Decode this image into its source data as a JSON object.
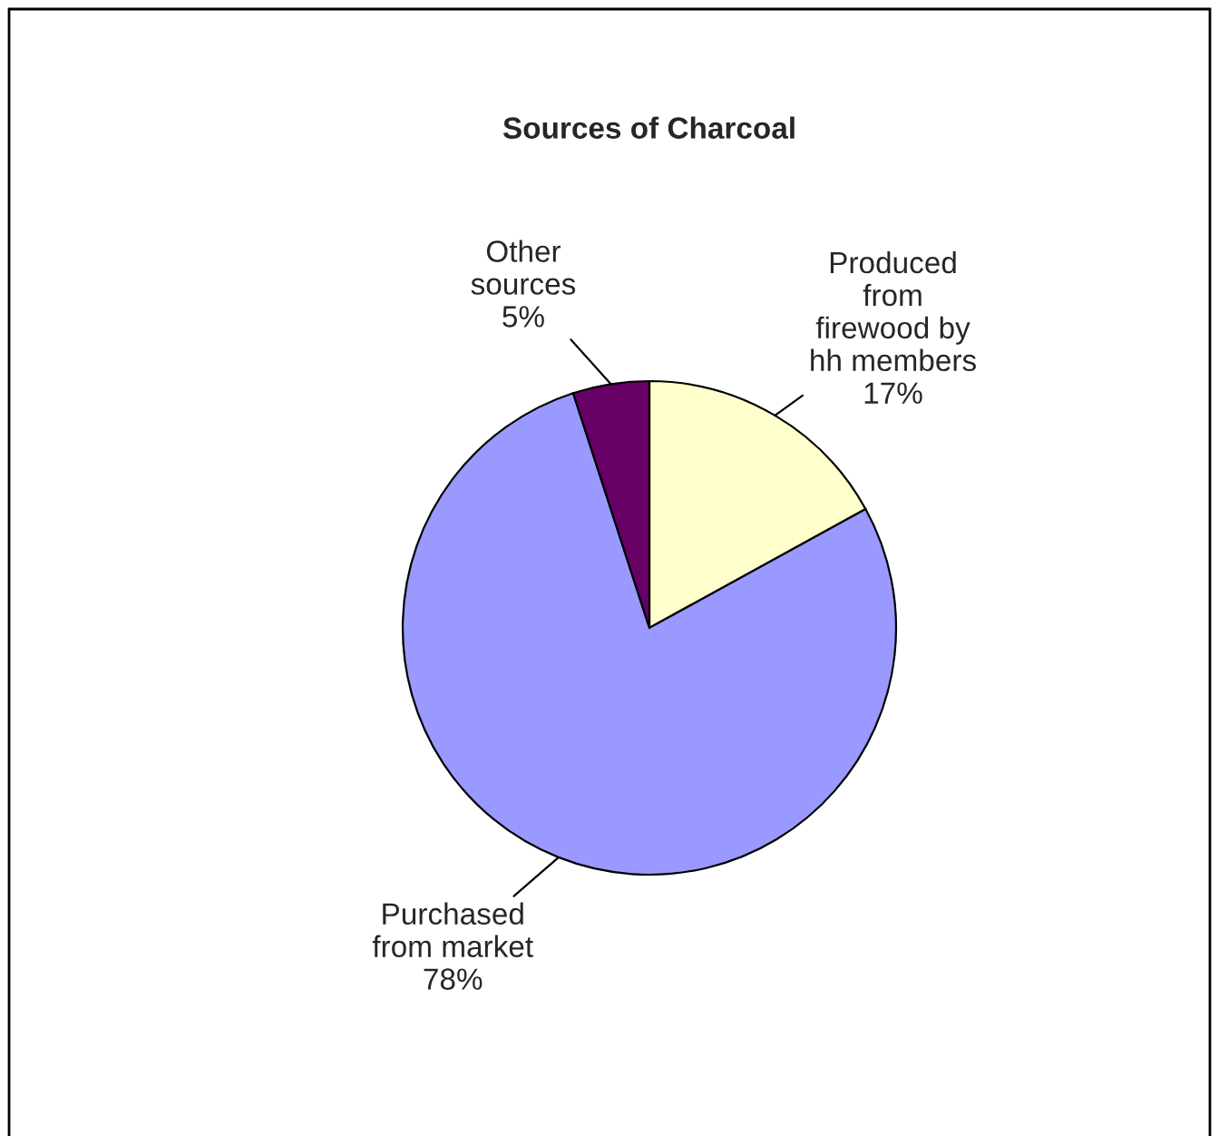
{
  "chart_data": {
    "type": "pie",
    "title": "Sources of Charcoal",
    "categories": [
      "Produced\nfrom\nfirewood by\nhh members",
      "Purchased\nfrom market",
      "Other\nsources"
    ],
    "values": [
      17,
      78,
      5
    ],
    "colors": [
      "#ffffcc",
      "#9999ff",
      "#660066"
    ],
    "value_labels": [
      "17%",
      "78%",
      "5%"
    ],
    "legend": false
  }
}
